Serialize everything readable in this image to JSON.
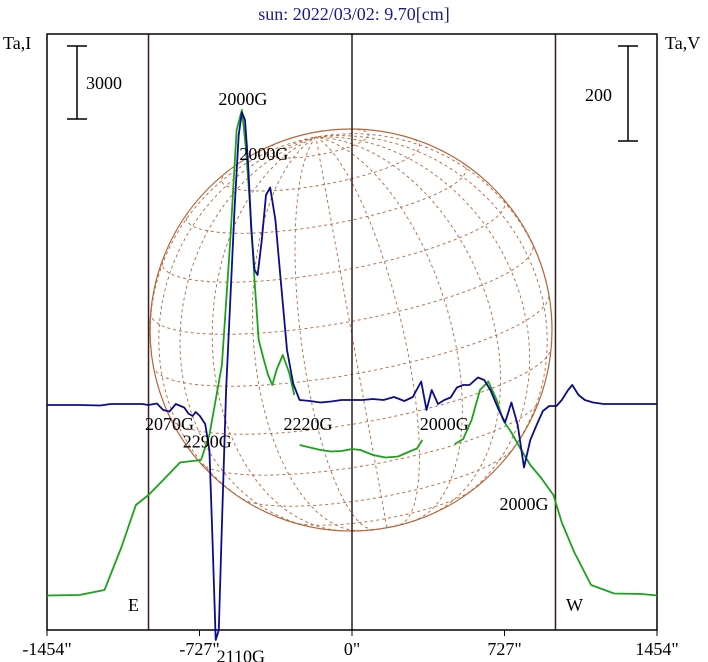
{
  "chart_data": {
    "type": "line",
    "title": "sun: 2022/03/02: 9.70[cm]",
    "left_axis_label": "Ta,I",
    "right_axis_label": "Ta,V",
    "left_scale_label": "3000",
    "right_scale_label": "200",
    "x_ticks": [
      {
        "value": -1454,
        "label": "-1454\""
      },
      {
        "value": -727,
        "label": "-727\""
      },
      {
        "value": 0,
        "label": "0\""
      },
      {
        "value": 727,
        "label": "727\""
      },
      {
        "value": 1454,
        "label": "1454\""
      }
    ],
    "xlim": [
      -1454,
      1454
    ],
    "limb_labels": {
      "east": "E",
      "west": "W"
    },
    "limb_positions": [
      -970,
      970
    ],
    "grid": false,
    "colors": {
      "intensity": "#1aa31a",
      "polarization": "#0c0c8c",
      "disk": "#b5653a",
      "axes": "#000000",
      "limb_line": "#3a1a1a",
      "title": "#1a1a8c"
    },
    "series": [
      {
        "key": "intensity",
        "points": [
          [
            -1454,
            9
          ],
          [
            -1300,
            10
          ],
          [
            -1180,
            20
          ],
          [
            -1100,
            105
          ],
          [
            -1030,
            190
          ],
          [
            -970,
            210
          ],
          [
            -900,
            240
          ],
          [
            -820,
            275
          ],
          [
            -720,
            280
          ],
          [
            -680,
            330
          ],
          [
            -620,
            470
          ],
          [
            -580,
            720
          ],
          [
            -550,
            940
          ],
          [
            -525,
            980
          ],
          [
            -505,
            900
          ],
          [
            -485,
            780
          ],
          [
            -465,
            640
          ],
          [
            -445,
            520
          ],
          [
            -420,
            480
          ],
          [
            -400,
            450
          ],
          [
            -380,
            430
          ],
          [
            -360,
            460
          ],
          [
            -330,
            490
          ],
          [
            -300,
            455
          ],
          [
            -275,
            410
          ]
        ]
      },
      {
        "key": "intensity",
        "points": [
          [
            -250,
            310
          ],
          [
            -200,
            305
          ],
          [
            -150,
            300
          ],
          [
            -100,
            297
          ],
          [
            -50,
            298
          ],
          [
            0,
            302
          ],
          [
            40,
            300
          ],
          [
            100,
            290
          ],
          [
            160,
            285
          ],
          [
            220,
            287
          ],
          [
            280,
            298
          ],
          [
            310,
            303
          ],
          [
            335,
            320
          ]
        ]
      },
      {
        "key": "intensity",
        "points": [
          [
            490,
            312
          ],
          [
            530,
            322
          ],
          [
            570,
            360
          ],
          [
            610,
            420
          ],
          [
            650,
            437
          ],
          [
            690,
            400
          ],
          [
            720,
            360
          ],
          [
            760,
            335
          ],
          [
            800,
            305
          ],
          [
            850,
            270
          ],
          [
            900,
            245
          ],
          [
            960,
            210
          ],
          [
            1000,
            155
          ],
          [
            1060,
            95
          ],
          [
            1140,
            30
          ],
          [
            1250,
            13
          ],
          [
            1380,
            12
          ],
          [
            1454,
            9
          ]
        ]
      },
      {
        "key": "polarization",
        "points": [
          [
            -1454,
            390
          ],
          [
            -1300,
            390
          ],
          [
            -1200,
            389
          ],
          [
            -1150,
            392
          ],
          [
            -1050,
            392
          ],
          [
            -1000,
            392
          ],
          [
            -970,
            390
          ],
          [
            -930,
            393
          ],
          [
            -900,
            380
          ],
          [
            -870,
            377
          ],
          [
            -840,
            392
          ],
          [
            -800,
            385
          ],
          [
            -780,
            373
          ],
          [
            -760,
            368
          ],
          [
            -745,
            376
          ],
          [
            -725,
            368
          ],
          [
            -700,
            352
          ],
          [
            -680,
            300
          ],
          [
            -665,
            120
          ],
          [
            -650,
            -80
          ],
          [
            -635,
            -60
          ],
          [
            -620,
            150
          ],
          [
            -600,
            420
          ],
          [
            -580,
            600
          ],
          [
            -560,
            780
          ],
          [
            -540,
            930
          ],
          [
            -525,
            975
          ],
          [
            -510,
            960
          ],
          [
            -495,
            870
          ],
          [
            -480,
            740
          ],
          [
            -465,
            660
          ],
          [
            -450,
            650
          ],
          [
            -430,
            720
          ],
          [
            -410,
            810
          ],
          [
            -390,
            825
          ],
          [
            -365,
            760
          ],
          [
            -340,
            640
          ],
          [
            -310,
            500
          ],
          [
            -280,
            432
          ],
          [
            -250,
            400
          ],
          [
            -200,
            398
          ],
          [
            -150,
            395
          ],
          [
            -100,
            397
          ],
          [
            -50,
            400
          ],
          [
            0,
            400
          ],
          [
            50,
            400
          ],
          [
            100,
            402
          ],
          [
            150,
            400
          ],
          [
            200,
            406
          ],
          [
            250,
            398
          ],
          [
            290,
            406
          ],
          [
            330,
            437
          ],
          [
            355,
            380
          ],
          [
            380,
            420
          ],
          [
            410,
            392
          ],
          [
            440,
            400
          ],
          [
            470,
            405
          ],
          [
            500,
            425
          ],
          [
            530,
            430
          ],
          [
            560,
            430
          ],
          [
            600,
            445
          ],
          [
            630,
            440
          ],
          [
            660,
            420
          ],
          [
            700,
            380
          ],
          [
            730,
            355
          ],
          [
            760,
            395
          ],
          [
            790,
            350
          ],
          [
            820,
            265
          ],
          [
            850,
            320
          ],
          [
            880,
            350
          ],
          [
            910,
            378
          ],
          [
            940,
            388
          ],
          [
            975,
            388
          ],
          [
            1000,
            400
          ],
          [
            1030,
            420
          ],
          [
            1050,
            430
          ],
          [
            1080,
            410
          ],
          [
            1110,
            400
          ],
          [
            1150,
            395
          ],
          [
            1200,
            392
          ],
          [
            1300,
            392
          ],
          [
            1454,
            392
          ]
        ]
      }
    ],
    "annotations": [
      {
        "text": "2000G",
        "x": -520,
        "y": 990
      },
      {
        "text": "2000G",
        "x": -420,
        "y": 880
      },
      {
        "text": "2070G",
        "x": -870,
        "y": 340
      },
      {
        "text": "2290G",
        "x": -690,
        "y": 305
      },
      {
        "text": "2220G",
        "x": -210,
        "y": 340
      },
      {
        "text": "2000G",
        "x": 440,
        "y": 340
      },
      {
        "text": "2000G",
        "x": 820,
        "y": 180
      },
      {
        "text": "2110G",
        "x": -530,
        "y": -125
      }
    ]
  }
}
